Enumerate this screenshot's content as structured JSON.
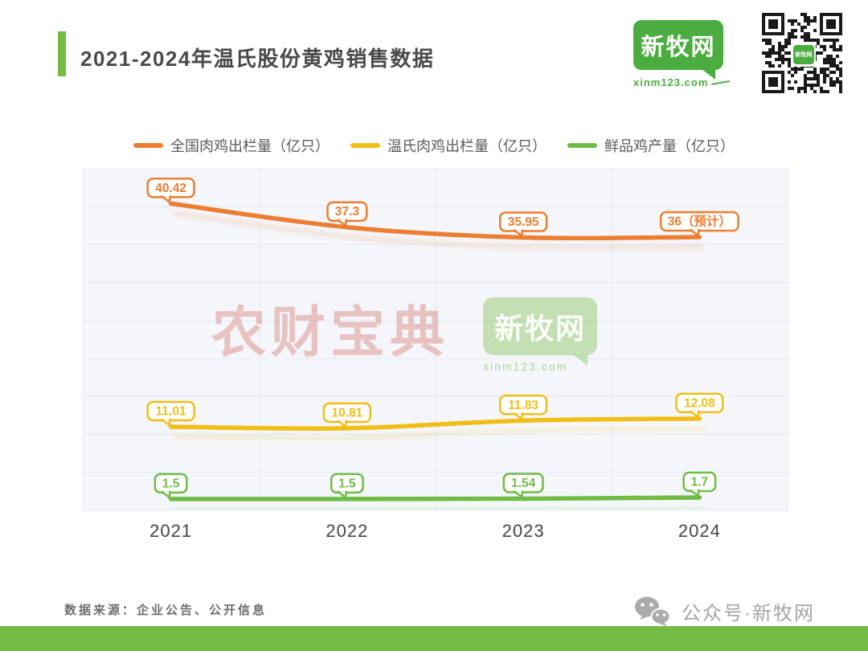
{
  "header": {
    "title": "2021-2024年温氏股份黄鸡销售数据",
    "accent_color": "#72BC44",
    "logo": {
      "text": "新牧网",
      "url_text": "xinm123.com"
    }
  },
  "chart_data": {
    "type": "line",
    "title": "2021-2024年温氏股份黄鸡销售数据",
    "categories": [
      "2021",
      "2022",
      "2023",
      "2024"
    ],
    "series": [
      {
        "name": "全国肉鸡出栏量（亿只）",
        "color": "#ED7D31",
        "values": [
          40.42,
          37.3,
          35.95,
          36
        ],
        "labels": [
          "40.42",
          "37.3",
          "35.95",
          "36（预计）"
        ]
      },
      {
        "name": "温氏肉鸡出栏量（亿只）",
        "color": "#F1BE17",
        "values": [
          11.01,
          10.81,
          11.83,
          12.08
        ],
        "labels": [
          "11.01",
          "10.81",
          "11.83",
          "12.08"
        ]
      },
      {
        "name": "鲜品鸡产量（亿只）",
        "color": "#6FBC45",
        "values": [
          1.5,
          1.5,
          1.54,
          1.7
        ],
        "labels": [
          "1.5",
          "1.5",
          "1.54",
          "1.7"
        ]
      }
    ],
    "xlabel": "",
    "ylabel": "",
    "ylim": [
      0,
      45
    ],
    "grid": true,
    "legend_position": "top"
  },
  "watermarks": {
    "brand1": "农财宝典",
    "brand2": "新牧网",
    "brand2_url": "xinm123.com"
  },
  "footer": {
    "source": "数据来源：企业公告、公开信息",
    "wechat": "公众号·新牧网"
  }
}
